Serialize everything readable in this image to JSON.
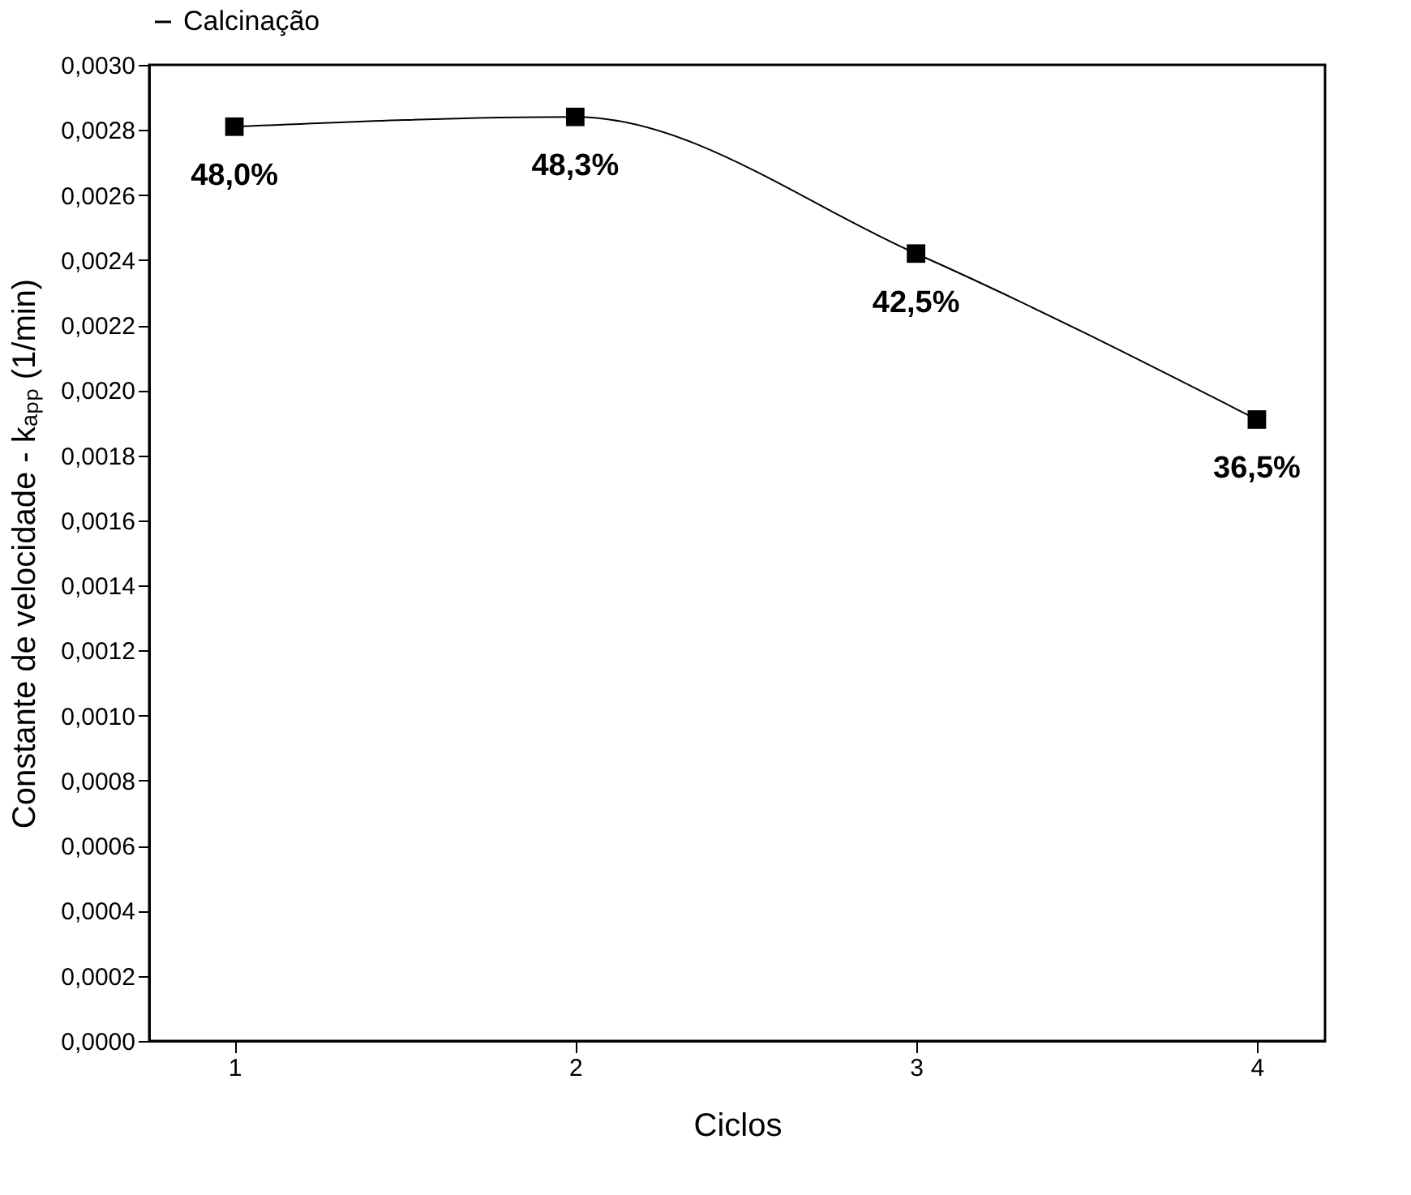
{
  "chart_data": {
    "type": "line",
    "xlabel": "Ciclos",
    "ylabel": "Constante de velocidade - kₐₚₚ (1/min)",
    "x": [
      1,
      2,
      3,
      4
    ],
    "series": [
      {
        "name": "Calcinação",
        "color": "#000000",
        "values": [
          0.00281,
          0.00284,
          0.00242,
          0.00191
        ]
      }
    ],
    "xlim": [
      0.75,
      4.2
    ],
    "xticks": [
      1,
      2,
      3,
      4
    ],
    "ylim": [
      0,
      0.003
    ],
    "yticks": [
      {
        "value": 0,
        "label": "0,0000"
      },
      {
        "value": 0.0002,
        "label": "0,0002"
      },
      {
        "value": 0.0004,
        "label": "0,0004"
      },
      {
        "value": 0.0006,
        "label": "0,0006"
      },
      {
        "value": 0.0008,
        "label": "0,0008"
      },
      {
        "value": 0.001,
        "label": "0,0010"
      },
      {
        "value": 0.0012,
        "label": "0,0012"
      },
      {
        "value": 0.0014,
        "label": "0,0014"
      },
      {
        "value": 0.0016,
        "label": "0,0016"
      },
      {
        "value": 0.0018,
        "label": "0,0018"
      },
      {
        "value": 0.002,
        "label": "0,0020"
      },
      {
        "value": 0.0022,
        "label": "0,0022"
      },
      {
        "value": 0.0024,
        "label": "0,0024"
      },
      {
        "value": 0.0026,
        "label": "0,0026"
      },
      {
        "value": 0.0028,
        "label": "0,0028"
      },
      {
        "value": 0.003,
        "label": "0,0030"
      }
    ],
    "annotations": [
      {
        "text": "48,0%",
        "x": 1,
        "y": 0.00281
      },
      {
        "text": "48,3%",
        "x": 2,
        "y": 0.00284
      },
      {
        "text": "42,5%",
        "x": 3,
        "y": 0.00242
      },
      {
        "text": "36,5%",
        "x": 4,
        "y": 0.00191
      }
    ],
    "marker": "square",
    "line_style": "solid",
    "legend": "top",
    "grid": false
  }
}
